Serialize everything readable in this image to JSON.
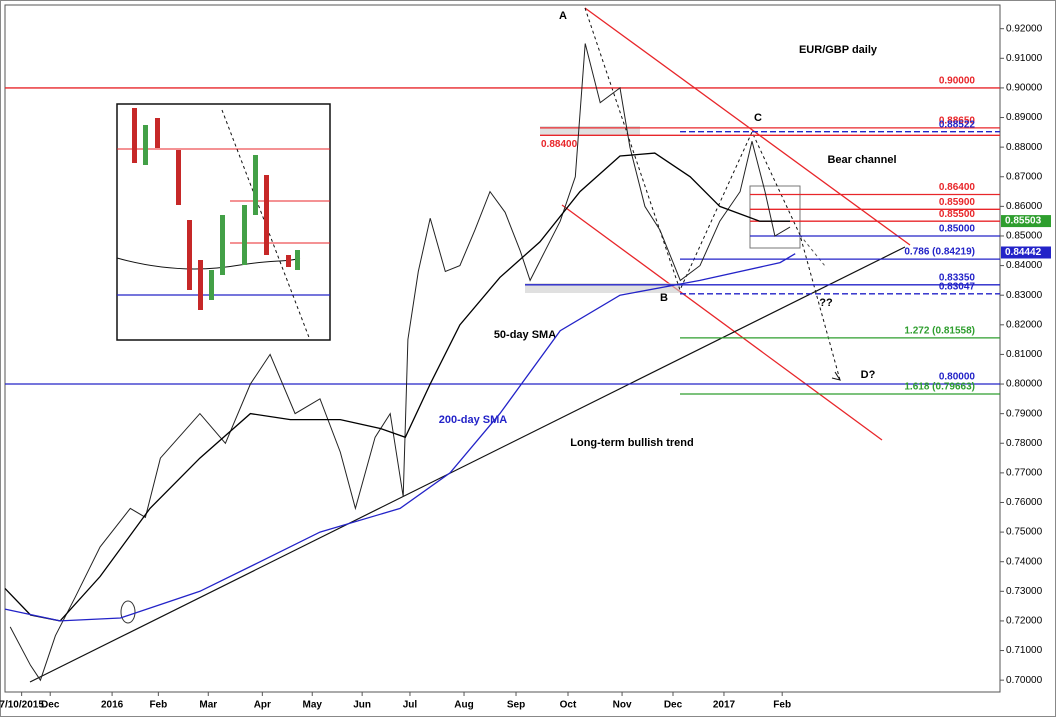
{
  "chart_data": {
    "type": "line",
    "title": "EUR/GBP daily",
    "annotations": [
      "Bear channel",
      "50-day SMA",
      "200-day SMA",
      "Long-term bullish trend",
      "A",
      "B",
      "C",
      "D?",
      "??"
    ],
    "xlim": [
      -0.87,
      18.27
    ],
    "ylim": [
      0.696,
      0.928
    ],
    "xticks": [
      {
        "value": -0.55,
        "label": "7/10/2015"
      },
      {
        "value": 0,
        "label": "Dec"
      },
      {
        "value": 1.19,
        "label": "2016"
      },
      {
        "value": 2.08,
        "label": "Feb"
      },
      {
        "value": 3.04,
        "label": "Mar"
      },
      {
        "value": 4.08,
        "label": "Apr"
      },
      {
        "value": 5.04,
        "label": "May"
      },
      {
        "value": 6.0,
        "label": "Jun"
      },
      {
        "value": 6.92,
        "label": "Jul"
      },
      {
        "value": 7.96,
        "label": "Aug"
      },
      {
        "value": 8.96,
        "label": "Sep"
      },
      {
        "value": 9.96,
        "label": "Oct"
      },
      {
        "value": 11.0,
        "label": "Nov"
      },
      {
        "value": 11.98,
        "label": "Dec"
      },
      {
        "value": 12.96,
        "label": "2017"
      },
      {
        "value": 14.08,
        "label": "Feb"
      }
    ],
    "yticks": [
      {
        "value": 0.7,
        "label": "0.70000"
      },
      {
        "value": 0.71,
        "label": "0.71000"
      },
      {
        "value": 0.72,
        "label": "0.72000"
      },
      {
        "value": 0.73,
        "label": "0.73000"
      },
      {
        "value": 0.74,
        "label": "0.74000"
      },
      {
        "value": 0.75,
        "label": "0.75000"
      },
      {
        "value": 0.76,
        "label": "0.76000"
      },
      {
        "value": 0.77,
        "label": "0.77000"
      },
      {
        "value": 0.78,
        "label": "0.78000"
      },
      {
        "value": 0.79,
        "label": "0.79000"
      },
      {
        "value": 0.8,
        "label": "0.80000"
      },
      {
        "value": 0.81,
        "label": "0.81000"
      },
      {
        "value": 0.82,
        "label": "0.82000"
      },
      {
        "value": 0.83,
        "label": "0.83000"
      },
      {
        "value": 0.84,
        "label": "0.84000"
      },
      {
        "value": 0.85,
        "label": "0.85000"
      },
      {
        "value": 0.86,
        "label": "0.86000"
      },
      {
        "value": 0.87,
        "label": "0.87000"
      },
      {
        "value": 0.88,
        "label": "0.88000"
      },
      {
        "value": 0.89,
        "label": "0.89000"
      },
      {
        "value": 0.9,
        "label": "0.90000"
      },
      {
        "value": 0.91,
        "label": "0.91000"
      },
      {
        "value": 0.92,
        "label": "0.92000"
      }
    ],
    "series": [
      {
        "color": "#222222",
        "x": [
          -0.77,
          -0.38,
          -0.19,
          0.1,
          0.48,
          0.96,
          1.54,
          1.83,
          2.12,
          2.88,
          3.37,
          3.85,
          4.23,
          4.71,
          5.19,
          5.58,
          5.87,
          6.25,
          6.54,
          6.79,
          6.88,
          7.08,
          7.31,
          7.6,
          7.88,
          8.17,
          8.46,
          8.75,
          9.04,
          9.23,
          9.52,
          9.81,
          10.1,
          10.29,
          10.58,
          10.96,
          11.15,
          11.44,
          11.73,
          12.12,
          12.5,
          12.88,
          13.27,
          13.5,
          13.75,
          13.94,
          14.23
        ],
        "values": [
          0.718,
          0.705,
          0.7,
          0.715,
          0.728,
          0.745,
          0.758,
          0.755,
          0.775,
          0.79,
          0.78,
          0.8,
          0.81,
          0.79,
          0.795,
          0.777,
          0.758,
          0.782,
          0.79,
          0.762,
          0.815,
          0.838,
          0.856,
          0.838,
          0.84,
          0.852,
          0.865,
          0.858,
          0.845,
          0.835,
          0.845,
          0.855,
          0.87,
          0.915,
          0.895,
          0.9,
          0.88,
          0.86,
          0.852,
          0.835,
          0.84,
          0.855,
          0.865,
          0.882,
          0.865,
          0.85,
          0.853
        ]
      },
      {
        "color": "#000000",
        "x": [
          -0.87,
          -0.38,
          0.19,
          0.96,
          1.92,
          2.88,
          3.85,
          4.62,
          5.58,
          6.35,
          6.83,
          7.31,
          7.88,
          8.65,
          9.42,
          10.19,
          10.96,
          11.63,
          12.31,
          12.88,
          13.65,
          14.23
        ],
        "values": [
          0.731,
          0.722,
          0.72,
          0.735,
          0.758,
          0.775,
          0.79,
          0.788,
          0.788,
          0.785,
          0.782,
          0.8,
          0.82,
          0.836,
          0.848,
          0.865,
          0.877,
          0.878,
          0.87,
          0.86,
          0.855,
          0.855
        ]
      },
      {
        "color": "#2323c8",
        "x": [
          -0.87,
          0.19,
          1.35,
          2.88,
          4.04,
          5.19,
          6.73,
          7.69,
          8.65,
          9.81,
          10.96,
          12.5,
          14.04,
          14.33
        ],
        "values": [
          0.724,
          0.72,
          0.721,
          0.73,
          0.74,
          0.75,
          0.758,
          0.77,
          0.79,
          0.818,
          0.83,
          0.835,
          0.841,
          0.844
        ]
      }
    ],
    "levels": [
      {
        "value": 0.9,
        "label": "0.90000",
        "color": "#e8262a"
      },
      {
        "value": 0.8865,
        "label": "0.88650",
        "color": "#e8262a"
      },
      {
        "value": 0.88522,
        "label": "0.88522",
        "color": "#2323c8",
        "dashed": true
      },
      {
        "value": 0.884,
        "label": "0.88400",
        "color": "#e8262a"
      },
      {
        "value": 0.864,
        "label": "0.86400",
        "color": "#e8262a"
      },
      {
        "value": 0.859,
        "label": "0.85900",
        "color": "#e8262a"
      },
      {
        "value": 0.855,
        "label": "0.85500",
        "color": "#e8262a"
      },
      {
        "value": 0.85,
        "label": "0.85000",
        "color": "#2323c8"
      },
      {
        "value": 0.84219,
        "label": "0.786 (0.84219)",
        "color": "#2323c8"
      },
      {
        "value": 0.8335,
        "label": "0.83350",
        "color": "#2323c8"
      },
      {
        "value": 0.83047,
        "label": "0.83047",
        "color": "#2323c8",
        "dashed": true
      },
      {
        "value": 0.81558,
        "label": "1.272 (0.81558)",
        "color": "#2e9e2e"
      },
      {
        "value": 0.8,
        "label": "0.80000",
        "color": "#2323c8"
      },
      {
        "value": 0.79663,
        "label": "1.618 (0.79663)",
        "color": "#2e9e2e"
      }
    ],
    "price_tags": [
      {
        "value": 0.85503,
        "label": "0.85503",
        "color": "#2e9e2e"
      },
      {
        "value": 0.84442,
        "label": "0.84442",
        "color": "#2323c8"
      }
    ]
  }
}
